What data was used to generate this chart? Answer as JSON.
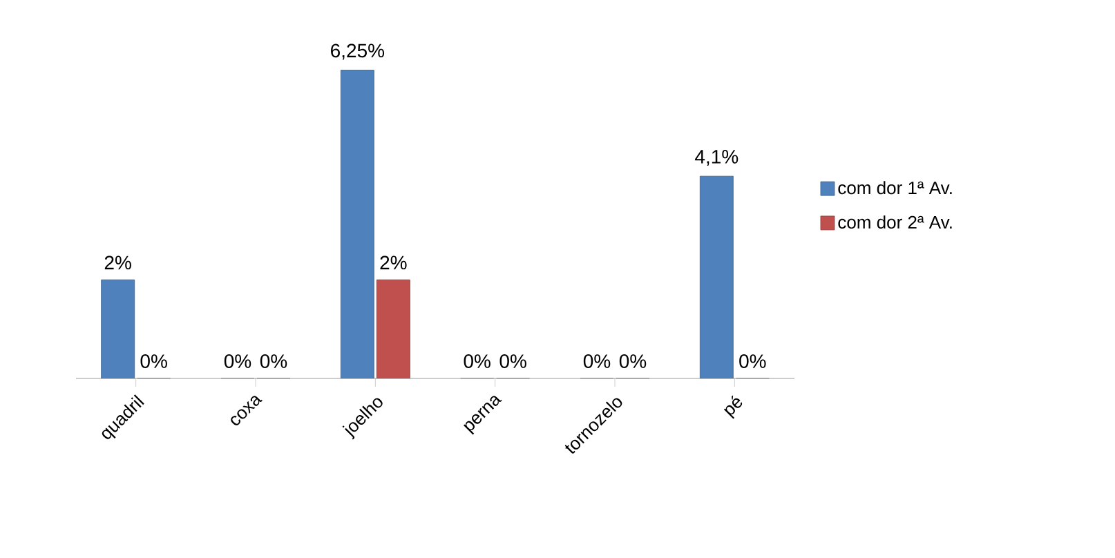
{
  "chart_data": {
    "type": "bar",
    "categories": [
      "quadril",
      "coxa",
      "joelho",
      "perna",
      "tornozelo",
      "pé"
    ],
    "series": [
      {
        "name": "com dor 1ª Av.",
        "color": "#4f81bd",
        "values": [
          2,
          0,
          6.25,
          0,
          0,
          4.1
        ],
        "value_labels": [
          "2%",
          "0%",
          "6,25%",
          "0%",
          "0%",
          "4,1%"
        ]
      },
      {
        "name": "com dor 2ª Av.",
        "color": "#c0504d",
        "values": [
          0,
          0,
          2,
          0,
          0,
          0
        ],
        "value_labels": [
          "0%",
          "0%",
          "2%",
          "0%",
          "0%",
          "0%"
        ]
      }
    ],
    "legend": "right"
  }
}
